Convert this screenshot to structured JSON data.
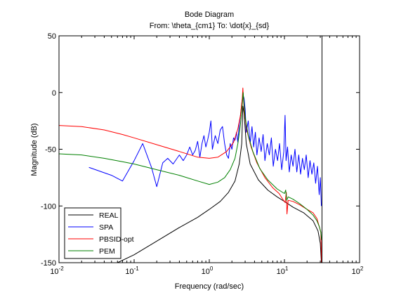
{
  "chart_data": {
    "type": "line",
    "title": "Bode Diagram",
    "subtitle": "From: \\theta_{cm1}  To: \\dot{x}_{sd}",
    "xlabel": "Frequency  (rad/sec)",
    "ylabel": "Magnitude (dB)",
    "xscale": "log",
    "xlim": [
      0.01,
      100
    ],
    "ylim": [
      -150,
      50
    ],
    "grid": false,
    "legend_position": "bottom-left",
    "x_ticks": [
      {
        "value": 0.01,
        "base": "10",
        "exp": "-2"
      },
      {
        "value": 0.1,
        "base": "10",
        "exp": "-1"
      },
      {
        "value": 1,
        "base": "10",
        "exp": "0"
      },
      {
        "value": 10,
        "base": "10",
        "exp": "1"
      },
      {
        "value": 100,
        "base": "10",
        "exp": "2"
      }
    ],
    "y_ticks": [
      "50",
      "0",
      "-50",
      "-100",
      "-150"
    ],
    "y_tick_values": [
      50,
      0,
      -50,
      -100,
      -150
    ],
    "vertical_marker_x": 31.6,
    "series": [
      {
        "name": "REAL",
        "color": "#000000",
        "points": [
          [
            0.06,
            -150
          ],
          [
            0.1,
            -143
          ],
          [
            0.2,
            -131
          ],
          [
            0.4,
            -119
          ],
          [
            0.7,
            -110
          ],
          [
            1.0,
            -103
          ],
          [
            1.4,
            -96
          ],
          [
            1.8,
            -88
          ],
          [
            2.2,
            -78
          ],
          [
            2.5,
            -63
          ],
          [
            2.7,
            -45
          ],
          [
            2.8,
            -12
          ],
          [
            2.9,
            -18
          ],
          [
            3.1,
            -45
          ],
          [
            3.5,
            -63
          ],
          [
            4.5,
            -77
          ],
          [
            6,
            -86
          ],
          [
            8,
            -92
          ],
          [
            10,
            -96
          ],
          [
            13,
            -101
          ],
          [
            18,
            -106
          ],
          [
            24,
            -113
          ],
          [
            28,
            -122
          ],
          [
            30,
            -133
          ],
          [
            31,
            -150
          ]
        ]
      },
      {
        "name": "SPA",
        "color": "#0000ff",
        "points": [
          [
            0.025,
            -66
          ],
          [
            0.05,
            -73
          ],
          [
            0.07,
            -78
          ],
          [
            0.1,
            -60
          ],
          [
            0.13,
            -45
          ],
          [
            0.17,
            -66
          ],
          [
            0.2,
            -83
          ],
          [
            0.24,
            -62
          ],
          [
            0.28,
            -58
          ],
          [
            0.33,
            -63
          ],
          [
            0.4,
            -55
          ],
          [
            0.45,
            -60
          ],
          [
            0.5,
            -55
          ],
          [
            0.55,
            -48
          ],
          [
            0.6,
            -55
          ],
          [
            0.65,
            -51
          ],
          [
            0.7,
            -43
          ],
          [
            0.75,
            -57
          ],
          [
            0.8,
            -45
          ],
          [
            0.85,
            -38
          ],
          [
            0.9,
            -48
          ],
          [
            0.95,
            -42
          ],
          [
            1.0,
            -35
          ],
          [
            1.05,
            -25
          ],
          [
            1.1,
            -50
          ],
          [
            1.2,
            -38
          ],
          [
            1.3,
            -45
          ],
          [
            1.4,
            -33
          ],
          [
            1.5,
            -30
          ],
          [
            1.6,
            -45
          ],
          [
            1.7,
            -55
          ],
          [
            1.8,
            -58
          ],
          [
            1.9,
            -45
          ],
          [
            2.0,
            -50
          ],
          [
            2.1,
            -40
          ],
          [
            2.2,
            -42
          ],
          [
            2.3,
            -35
          ],
          [
            2.4,
            -44
          ],
          [
            2.5,
            -28
          ],
          [
            2.6,
            -20
          ],
          [
            2.7,
            -10
          ],
          [
            2.8,
            -2
          ],
          [
            2.9,
            -5
          ],
          [
            3.0,
            -15
          ],
          [
            3.1,
            -35
          ],
          [
            3.3,
            -25
          ],
          [
            3.5,
            -45
          ],
          [
            3.7,
            -30
          ],
          [
            3.9,
            -48
          ],
          [
            4.1,
            -35
          ],
          [
            4.3,
            -55
          ],
          [
            4.6,
            -40
          ],
          [
            4.9,
            -52
          ],
          [
            5.2,
            -37
          ],
          [
            5.5,
            -60
          ],
          [
            5.9,
            -45
          ],
          [
            6.3,
            -55
          ],
          [
            6.7,
            -40
          ],
          [
            7.1,
            -65
          ],
          [
            7.6,
            -50
          ],
          [
            8.1,
            -60
          ],
          [
            8.6,
            -45
          ],
          [
            9.2,
            -68
          ],
          [
            9.8,
            -52
          ],
          [
            10.2,
            -20
          ],
          [
            10.5,
            -60
          ],
          [
            11,
            -48
          ],
          [
            11.6,
            -70
          ],
          [
            12.3,
            -55
          ],
          [
            13,
            -65
          ],
          [
            13.8,
            -50
          ],
          [
            14.6,
            -70
          ],
          [
            15.5,
            -55
          ],
          [
            16.4,
            -72
          ],
          [
            17.4,
            -58
          ],
          [
            18.4,
            -68
          ],
          [
            19.5,
            -55
          ],
          [
            20.7,
            -75
          ],
          [
            21.9,
            -60
          ],
          [
            23.2,
            -72
          ],
          [
            24.6,
            -62
          ],
          [
            26,
            -80
          ],
          [
            27.5,
            -65
          ],
          [
            29,
            -90
          ],
          [
            30,
            -75
          ],
          [
            31,
            -100
          ]
        ]
      },
      {
        "name": "PBSID-opt",
        "color": "#ff0000",
        "points": [
          [
            0.01,
            -29
          ],
          [
            0.02,
            -30
          ],
          [
            0.04,
            -33
          ],
          [
            0.07,
            -37
          ],
          [
            0.1,
            -40
          ],
          [
            0.2,
            -46
          ],
          [
            0.4,
            -52
          ],
          [
            0.7,
            -57
          ],
          [
            1.0,
            -58
          ],
          [
            1.3,
            -57
          ],
          [
            1.7,
            -52
          ],
          [
            2.1,
            -44
          ],
          [
            2.4,
            -32
          ],
          [
            2.6,
            -20
          ],
          [
            2.75,
            -5
          ],
          [
            2.8,
            4
          ],
          [
            2.85,
            -6
          ],
          [
            2.95,
            -20
          ],
          [
            3.2,
            -35
          ],
          [
            3.6,
            -48
          ],
          [
            4.3,
            -62
          ],
          [
            5.5,
            -75
          ],
          [
            7,
            -84
          ],
          [
            8.5,
            -89
          ],
          [
            9.5,
            -94
          ],
          [
            10.2,
            -97
          ],
          [
            10.6,
            -88
          ],
          [
            10.8,
            -107
          ],
          [
            11.2,
            -95
          ],
          [
            13,
            -96
          ],
          [
            16,
            -99
          ],
          [
            20,
            -103
          ],
          [
            24,
            -106
          ],
          [
            27,
            -111
          ],
          [
            29,
            -118
          ],
          [
            30.5,
            -123
          ],
          [
            31.2,
            -150
          ]
        ]
      },
      {
        "name": "PEM",
        "color": "#008000",
        "points": [
          [
            0.01,
            -54
          ],
          [
            0.02,
            -55
          ],
          [
            0.04,
            -58
          ],
          [
            0.07,
            -61
          ],
          [
            0.1,
            -63
          ],
          [
            0.2,
            -68
          ],
          [
            0.4,
            -73
          ],
          [
            0.7,
            -78
          ],
          [
            1.0,
            -81
          ],
          [
            1.3,
            -79
          ],
          [
            1.6,
            -75
          ],
          [
            1.9,
            -68
          ],
          [
            2.2,
            -58
          ],
          [
            2.4,
            -45
          ],
          [
            2.6,
            -28
          ],
          [
            2.75,
            -10
          ],
          [
            2.82,
            0
          ],
          [
            2.88,
            -8
          ],
          [
            3.0,
            -22
          ],
          [
            3.3,
            -38
          ],
          [
            3.8,
            -52
          ],
          [
            4.7,
            -67
          ],
          [
            6,
            -77
          ],
          [
            8,
            -85
          ],
          [
            10,
            -89
          ],
          [
            10.4,
            -86
          ],
          [
            10.7,
            -95
          ],
          [
            11.2,
            -92
          ],
          [
            13,
            -94
          ],
          [
            16,
            -98
          ],
          [
            20,
            -103
          ],
          [
            24,
            -108
          ],
          [
            27,
            -113
          ],
          [
            29,
            -118
          ],
          [
            30.5,
            -123
          ],
          [
            31.2,
            -130
          ]
        ]
      }
    ]
  }
}
